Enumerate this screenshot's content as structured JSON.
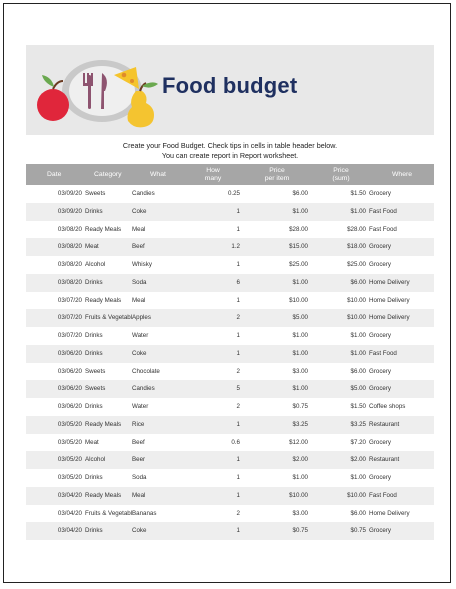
{
  "title": "Food budget",
  "intro": [
    "Create your Food Budget. Check tips in cells in table header below.",
    "You can create report in Report worksheet."
  ],
  "headers": {
    "date": "Date",
    "category": "Category",
    "what": "What",
    "how_many": [
      "How",
      "many"
    ],
    "price_item": [
      "Price",
      "per item"
    ],
    "price_sum": [
      "Price",
      "(sum)"
    ],
    "where": "Where"
  },
  "rows": [
    {
      "date": "03/09/20",
      "category": "Sweets",
      "what": "Candies",
      "how_many": "0.25",
      "price_item": "$6.00",
      "price_sum": "$1.50",
      "where": "Grocery"
    },
    {
      "date": "03/09/20",
      "category": "Drinks",
      "what": "Coke",
      "how_many": "1",
      "price_item": "$1.00",
      "price_sum": "$1.00",
      "where": "Fast Food"
    },
    {
      "date": "03/08/20",
      "category": "Ready Meals",
      "what": "Meal",
      "how_many": "1",
      "price_item": "$28.00",
      "price_sum": "$28.00",
      "where": "Fast Food"
    },
    {
      "date": "03/08/20",
      "category": "Meat",
      "what": "Beef",
      "how_many": "1.2",
      "price_item": "$15.00",
      "price_sum": "$18.00",
      "where": "Grocery"
    },
    {
      "date": "03/08/20",
      "category": "Alcohol",
      "what": "Whisky",
      "how_many": "1",
      "price_item": "$25.00",
      "price_sum": "$25.00",
      "where": "Grocery"
    },
    {
      "date": "03/08/20",
      "category": "Drinks",
      "what": "Soda",
      "how_many": "6",
      "price_item": "$1.00",
      "price_sum": "$6.00",
      "where": "Home Delivery"
    },
    {
      "date": "03/07/20",
      "category": "Ready Meals",
      "what": "Meal",
      "how_many": "1",
      "price_item": "$10.00",
      "price_sum": "$10.00",
      "where": "Home Delivery"
    },
    {
      "date": "03/07/20",
      "category": "Fruits & Vegetables",
      "what": "Apples",
      "how_many": "2",
      "price_item": "$5.00",
      "price_sum": "$10.00",
      "where": "Home Delivery"
    },
    {
      "date": "03/07/20",
      "category": "Drinks",
      "what": "Water",
      "how_many": "1",
      "price_item": "$1.00",
      "price_sum": "$1.00",
      "where": "Grocery"
    },
    {
      "date": "03/06/20",
      "category": "Drinks",
      "what": "Coke",
      "how_many": "1",
      "price_item": "$1.00",
      "price_sum": "$1.00",
      "where": "Fast Food"
    },
    {
      "date": "03/06/20",
      "category": "Sweets",
      "what": "Chocolate",
      "how_many": "2",
      "price_item": "$3.00",
      "price_sum": "$6.00",
      "where": "Grocery"
    },
    {
      "date": "03/06/20",
      "category": "Sweets",
      "what": "Candies",
      "how_many": "5",
      "price_item": "$1.00",
      "price_sum": "$5.00",
      "where": "Grocery"
    },
    {
      "date": "03/06/20",
      "category": "Drinks",
      "what": "Water",
      "how_many": "2",
      "price_item": "$0.75",
      "price_sum": "$1.50",
      "where": "Coffee shops"
    },
    {
      "date": "03/05/20",
      "category": "Ready Meals",
      "what": "Rice",
      "how_many": "1",
      "price_item": "$3.25",
      "price_sum": "$3.25",
      "where": "Restaurant"
    },
    {
      "date": "03/05/20",
      "category": "Meat",
      "what": "Beef",
      "how_many": "0.6",
      "price_item": "$12.00",
      "price_sum": "$7.20",
      "where": "Grocery"
    },
    {
      "date": "03/05/20",
      "category": "Alcohol",
      "what": "Beer",
      "how_many": "1",
      "price_item": "$2.00",
      "price_sum": "$2.00",
      "where": "Restaurant"
    },
    {
      "date": "03/05/20",
      "category": "Drinks",
      "what": "Soda",
      "how_many": "1",
      "price_item": "$1.00",
      "price_sum": "$1.00",
      "where": "Grocery"
    },
    {
      "date": "03/04/20",
      "category": "Ready Meals",
      "what": "Meal",
      "how_many": "1",
      "price_item": "$10.00",
      "price_sum": "$10.00",
      "where": "Fast Food"
    },
    {
      "date": "03/04/20",
      "category": "Fruits & Vegetables",
      "what": "Bananas",
      "how_many": "2",
      "price_item": "$3.00",
      "price_sum": "$6.00",
      "where": "Home Delivery"
    },
    {
      "date": "03/04/20",
      "category": "Drinks",
      "what": "Coke",
      "how_many": "1",
      "price_item": "$0.75",
      "price_sum": "$0.75",
      "where": "Grocery"
    }
  ]
}
